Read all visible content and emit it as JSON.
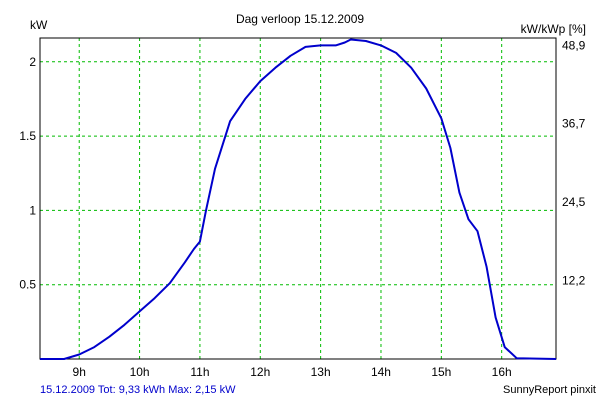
{
  "chart_data": {
    "type": "line",
    "title": "Dag  verloop 15.12.2009",
    "y_left_label": "kW",
    "y_right_label": "kW/kWp [%]",
    "x_range": [
      8.35,
      16.9
    ],
    "y_range": [
      0,
      2.16
    ],
    "x_ticks": [
      {
        "v": 9,
        "label": "9h"
      },
      {
        "v": 10,
        "label": "10h"
      },
      {
        "v": 11,
        "label": "11h"
      },
      {
        "v": 12,
        "label": "12h"
      },
      {
        "v": 13,
        "label": "13h"
      },
      {
        "v": 14,
        "label": "14h"
      },
      {
        "v": 15,
        "label": "15h"
      },
      {
        "v": 16,
        "label": "16h"
      }
    ],
    "y_left_ticks": [
      {
        "v": 0.5,
        "label": "0.5"
      },
      {
        "v": 1,
        "label": "1"
      },
      {
        "v": 1.5,
        "label": "1.5"
      },
      {
        "v": 2,
        "label": "2"
      }
    ],
    "y_right_ticks": [
      {
        "v": 0.527,
        "label": "12,2"
      },
      {
        "v": 1.057,
        "label": "24,5"
      },
      {
        "v": 1.584,
        "label": "36,7"
      },
      {
        "v": 2.111,
        "label": "48,9"
      }
    ],
    "grid": true,
    "colors": {
      "line": "#0000cc",
      "grid": "#00bb00",
      "footer": "#0000cc"
    },
    "series": [
      {
        "points": [
          [
            8.35,
            0
          ],
          [
            8.75,
            0
          ],
          [
            9.0,
            0.03
          ],
          [
            9.25,
            0.08
          ],
          [
            9.5,
            0.15
          ],
          [
            9.75,
            0.23
          ],
          [
            10.0,
            0.32
          ],
          [
            10.25,
            0.41
          ],
          [
            10.5,
            0.51
          ],
          [
            10.75,
            0.65
          ],
          [
            10.9,
            0.74
          ],
          [
            11.0,
            0.79
          ],
          [
            11.1,
            1.0
          ],
          [
            11.25,
            1.28
          ],
          [
            11.5,
            1.6
          ],
          [
            11.75,
            1.75
          ],
          [
            12.0,
            1.87
          ],
          [
            12.25,
            1.96
          ],
          [
            12.5,
            2.04
          ],
          [
            12.75,
            2.1
          ],
          [
            13.0,
            2.11
          ],
          [
            13.25,
            2.11
          ],
          [
            13.4,
            2.13
          ],
          [
            13.5,
            2.15
          ],
          [
            13.75,
            2.14
          ],
          [
            14.0,
            2.11
          ],
          [
            14.25,
            2.06
          ],
          [
            14.5,
            1.96
          ],
          [
            14.75,
            1.82
          ],
          [
            15.0,
            1.62
          ],
          [
            15.15,
            1.42
          ],
          [
            15.3,
            1.12
          ],
          [
            15.45,
            0.94
          ],
          [
            15.6,
            0.86
          ],
          [
            15.75,
            0.62
          ],
          [
            15.9,
            0.28
          ],
          [
            16.05,
            0.08
          ],
          [
            16.25,
            0.005
          ],
          [
            16.9,
            0
          ]
        ]
      }
    ]
  },
  "footer": {
    "summary": "15.12.2009 Tot: 9,33 kWh Max: 2,15 kW",
    "credit": "SunnyReport pinxit"
  }
}
